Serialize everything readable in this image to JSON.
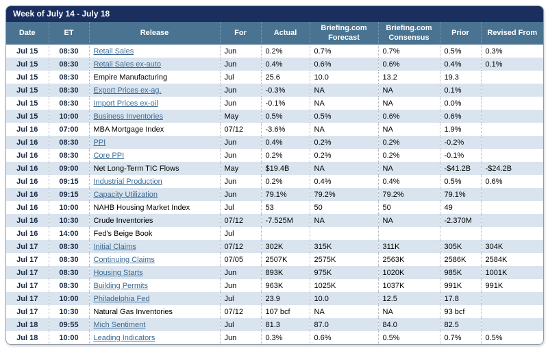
{
  "calendar": {
    "title": "Week of July 14 - July 18",
    "colors": {
      "title_bar": "#1a2f5e",
      "header_bg": "#497391",
      "row_stripe": "#d9e4ee",
      "link": "#3a6a94",
      "date_text": "#1b2b45"
    },
    "columns": [
      {
        "key": "date",
        "label": "Date"
      },
      {
        "key": "et",
        "label": "ET"
      },
      {
        "key": "release",
        "label": "Release"
      },
      {
        "key": "for",
        "label": "For"
      },
      {
        "key": "actual",
        "label": "Actual"
      },
      {
        "key": "forecast",
        "label": "Briefing.com Forecast"
      },
      {
        "key": "consensus",
        "label": "Briefing.com Consensus"
      },
      {
        "key": "prior",
        "label": "Prior"
      },
      {
        "key": "revised",
        "label": "Revised From"
      }
    ],
    "rows": [
      {
        "date": "Jul 15",
        "et": "08:30",
        "release": "Retail Sales",
        "link": true,
        "for": "Jun",
        "actual": "0.2%",
        "forecast": "0.7%",
        "consensus": "0.7%",
        "prior": "0.5%",
        "revised": "0.3%"
      },
      {
        "date": "Jul 15",
        "et": "08:30",
        "release": "Retail Sales ex-auto",
        "link": true,
        "for": "Jun",
        "actual": "0.4%",
        "forecast": "0.6%",
        "consensus": "0.6%",
        "prior": "0.4%",
        "revised": "0.1%"
      },
      {
        "date": "Jul 15",
        "et": "08:30",
        "release": "Empire Manufacturing",
        "link": false,
        "for": "Jul",
        "actual": "25.6",
        "forecast": "10.0",
        "consensus": "13.2",
        "prior": "19.3",
        "revised": ""
      },
      {
        "date": "Jul 15",
        "et": "08:30",
        "release": "Export Prices ex-ag.",
        "link": true,
        "for": "Jun",
        "actual": "-0.3%",
        "forecast": "NA",
        "consensus": "NA",
        "prior": "0.1%",
        "revised": ""
      },
      {
        "date": "Jul 15",
        "et": "08:30",
        "release": "Import Prices ex-oil",
        "link": true,
        "for": "Jun",
        "actual": "-0.1%",
        "forecast": "NA",
        "consensus": "NA",
        "prior": "0.0%",
        "revised": ""
      },
      {
        "date": "Jul 15",
        "et": "10:00",
        "release": "Business Inventories",
        "link": true,
        "for": "May",
        "actual": "0.5%",
        "forecast": "0.5%",
        "consensus": "0.6%",
        "prior": "0.6%",
        "revised": ""
      },
      {
        "date": "Jul 16",
        "et": "07:00",
        "release": "MBA Mortgage Index",
        "link": false,
        "for": "07/12",
        "actual": "-3.6%",
        "forecast": "NA",
        "consensus": "NA",
        "prior": "1.9%",
        "revised": ""
      },
      {
        "date": "Jul 16",
        "et": "08:30",
        "release": "PPI",
        "link": true,
        "for": "Jun",
        "actual": "0.4%",
        "forecast": "0.2%",
        "consensus": "0.2%",
        "prior": "-0.2%",
        "revised": ""
      },
      {
        "date": "Jul 16",
        "et": "08:30",
        "release": "Core PPI",
        "link": true,
        "for": "Jun",
        "actual": "0.2%",
        "forecast": "0.2%",
        "consensus": "0.2%",
        "prior": "-0.1%",
        "revised": ""
      },
      {
        "date": "Jul 16",
        "et": "09:00",
        "release": "Net Long-Term TIC Flows",
        "link": false,
        "for": "May",
        "actual": "$19.4B",
        "forecast": "NA",
        "consensus": "NA",
        "prior": "-$41.2B",
        "revised": "-$24.2B"
      },
      {
        "date": "Jul 16",
        "et": "09:15",
        "release": "Industrial Production",
        "link": true,
        "for": "Jun",
        "actual": "0.2%",
        "forecast": "0.4%",
        "consensus": "0.4%",
        "prior": "0.5%",
        "revised": "0.6%"
      },
      {
        "date": "Jul 16",
        "et": "09:15",
        "release": "Capacity Utilization",
        "link": true,
        "for": "Jun",
        "actual": "79.1%",
        "forecast": "79.2%",
        "consensus": "79.2%",
        "prior": "79.1%",
        "revised": ""
      },
      {
        "date": "Jul 16",
        "et": "10:00",
        "release": "NAHB Housing Market Index",
        "link": false,
        "for": "Jul",
        "actual": "53",
        "forecast": "50",
        "consensus": "50",
        "prior": "49",
        "revised": ""
      },
      {
        "date": "Jul 16",
        "et": "10:30",
        "release": "Crude Inventories",
        "link": false,
        "for": "07/12",
        "actual": "-7.525M",
        "forecast": "NA",
        "consensus": "NA",
        "prior": "-2.370M",
        "revised": ""
      },
      {
        "date": "Jul 16",
        "et": "14:00",
        "release": "Fed's Beige Book",
        "link": false,
        "for": "Jul",
        "actual": "",
        "forecast": "",
        "consensus": "",
        "prior": "",
        "revised": ""
      },
      {
        "date": "Jul 17",
        "et": "08:30",
        "release": "Initial Claims",
        "link": true,
        "for": "07/12",
        "actual": "302K",
        "forecast": "315K",
        "consensus": "311K",
        "prior": "305K",
        "revised": "304K"
      },
      {
        "date": "Jul 17",
        "et": "08:30",
        "release": "Continuing Claims",
        "link": true,
        "for": "07/05",
        "actual": "2507K",
        "forecast": "2575K",
        "consensus": "2563K",
        "prior": "2586K",
        "revised": "2584K"
      },
      {
        "date": "Jul 17",
        "et": "08:30",
        "release": "Housing Starts",
        "link": true,
        "for": "Jun",
        "actual": "893K",
        "forecast": "975K",
        "consensus": "1020K",
        "prior": "985K",
        "revised": "1001K"
      },
      {
        "date": "Jul 17",
        "et": "08:30",
        "release": "Building Permits",
        "link": true,
        "for": "Jun",
        "actual": "963K",
        "forecast": "1025K",
        "consensus": "1037K",
        "prior": "991K",
        "revised": "991K"
      },
      {
        "date": "Jul 17",
        "et": "10:00",
        "release": "Philadelphia Fed",
        "link": true,
        "for": "Jul",
        "actual": "23.9",
        "forecast": "10.0",
        "consensus": "12.5",
        "prior": "17.8",
        "revised": ""
      },
      {
        "date": "Jul 17",
        "et": "10:30",
        "release": "Natural Gas Inventories",
        "link": false,
        "for": "07/12",
        "actual": "107 bcf",
        "forecast": "NA",
        "consensus": "NA",
        "prior": "93 bcf",
        "revised": ""
      },
      {
        "date": "Jul 18",
        "et": "09:55",
        "release": "Mich Sentiment",
        "link": true,
        "for": "Jul",
        "actual": "81.3",
        "forecast": "87.0",
        "consensus": "84.0",
        "prior": "82.5",
        "revised": ""
      },
      {
        "date": "Jul 18",
        "et": "10:00",
        "release": "Leading Indicators",
        "link": true,
        "for": "Jun",
        "actual": "0.3%",
        "forecast": "0.6%",
        "consensus": "0.5%",
        "prior": "0.7%",
        "revised": "0.5%"
      }
    ]
  }
}
